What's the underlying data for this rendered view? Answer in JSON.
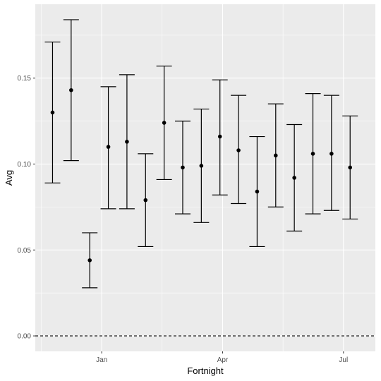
{
  "chart_data": {
    "type": "scatter",
    "subtype": "point-with-errorbars",
    "xlabel": "Fortnight",
    "ylabel": "Avg",
    "x_ticks": [
      {
        "label": "Jan",
        "date": "2020-01-01"
      },
      {
        "label": "Apr",
        "date": "2020-04-01"
      },
      {
        "label": "Jul",
        "date": "2020-07-01"
      }
    ],
    "y_ticks": [
      "0.00",
      "0.05",
      "0.10",
      "0.15"
    ],
    "y_tick_values": [
      0.0,
      0.05,
      0.1,
      0.15
    ],
    "xlim": [
      "2019-11-12",
      "2020-07-25"
    ],
    "ylim": [
      -0.009,
      0.193
    ],
    "reference_line": {
      "y": 0.0,
      "style": "dashed"
    },
    "grid": true,
    "panel_background": "#ebebeb",
    "grid_color": "#ffffff",
    "point_color": "#000000",
    "points": [
      {
        "x": "2019-11-25",
        "y": 0.13,
        "ymin": 0.089,
        "ymax": 0.171
      },
      {
        "x": "2019-12-09",
        "y": 0.143,
        "ymin": 0.102,
        "ymax": 0.184
      },
      {
        "x": "2019-12-23",
        "y": 0.044,
        "ymin": 0.028,
        "ymax": 0.06
      },
      {
        "x": "2020-01-06",
        "y": 0.11,
        "ymin": 0.074,
        "ymax": 0.145
      },
      {
        "x": "2020-01-20",
        "y": 0.113,
        "ymin": 0.074,
        "ymax": 0.152
      },
      {
        "x": "2020-02-03",
        "y": 0.079,
        "ymin": 0.052,
        "ymax": 0.106
      },
      {
        "x": "2020-02-17",
        "y": 0.124,
        "ymin": 0.091,
        "ymax": 0.157
      },
      {
        "x": "2020-03-02",
        "y": 0.098,
        "ymin": 0.071,
        "ymax": 0.125
      },
      {
        "x": "2020-03-16",
        "y": 0.099,
        "ymin": 0.066,
        "ymax": 0.132
      },
      {
        "x": "2020-03-30",
        "y": 0.116,
        "ymin": 0.082,
        "ymax": 0.149
      },
      {
        "x": "2020-04-13",
        "y": 0.108,
        "ymin": 0.077,
        "ymax": 0.14
      },
      {
        "x": "2020-04-27",
        "y": 0.084,
        "ymin": 0.052,
        "ymax": 0.116
      },
      {
        "x": "2020-05-11",
        "y": 0.105,
        "ymin": 0.075,
        "ymax": 0.135
      },
      {
        "x": "2020-05-25",
        "y": 0.092,
        "ymin": 0.061,
        "ymax": 0.123
      },
      {
        "x": "2020-06-08",
        "y": 0.106,
        "ymin": 0.071,
        "ymax": 0.141
      },
      {
        "x": "2020-06-22",
        "y": 0.106,
        "ymin": 0.073,
        "ymax": 0.14
      },
      {
        "x": "2020-07-06",
        "y": 0.098,
        "ymin": 0.068,
        "ymax": 0.128
      }
    ]
  }
}
